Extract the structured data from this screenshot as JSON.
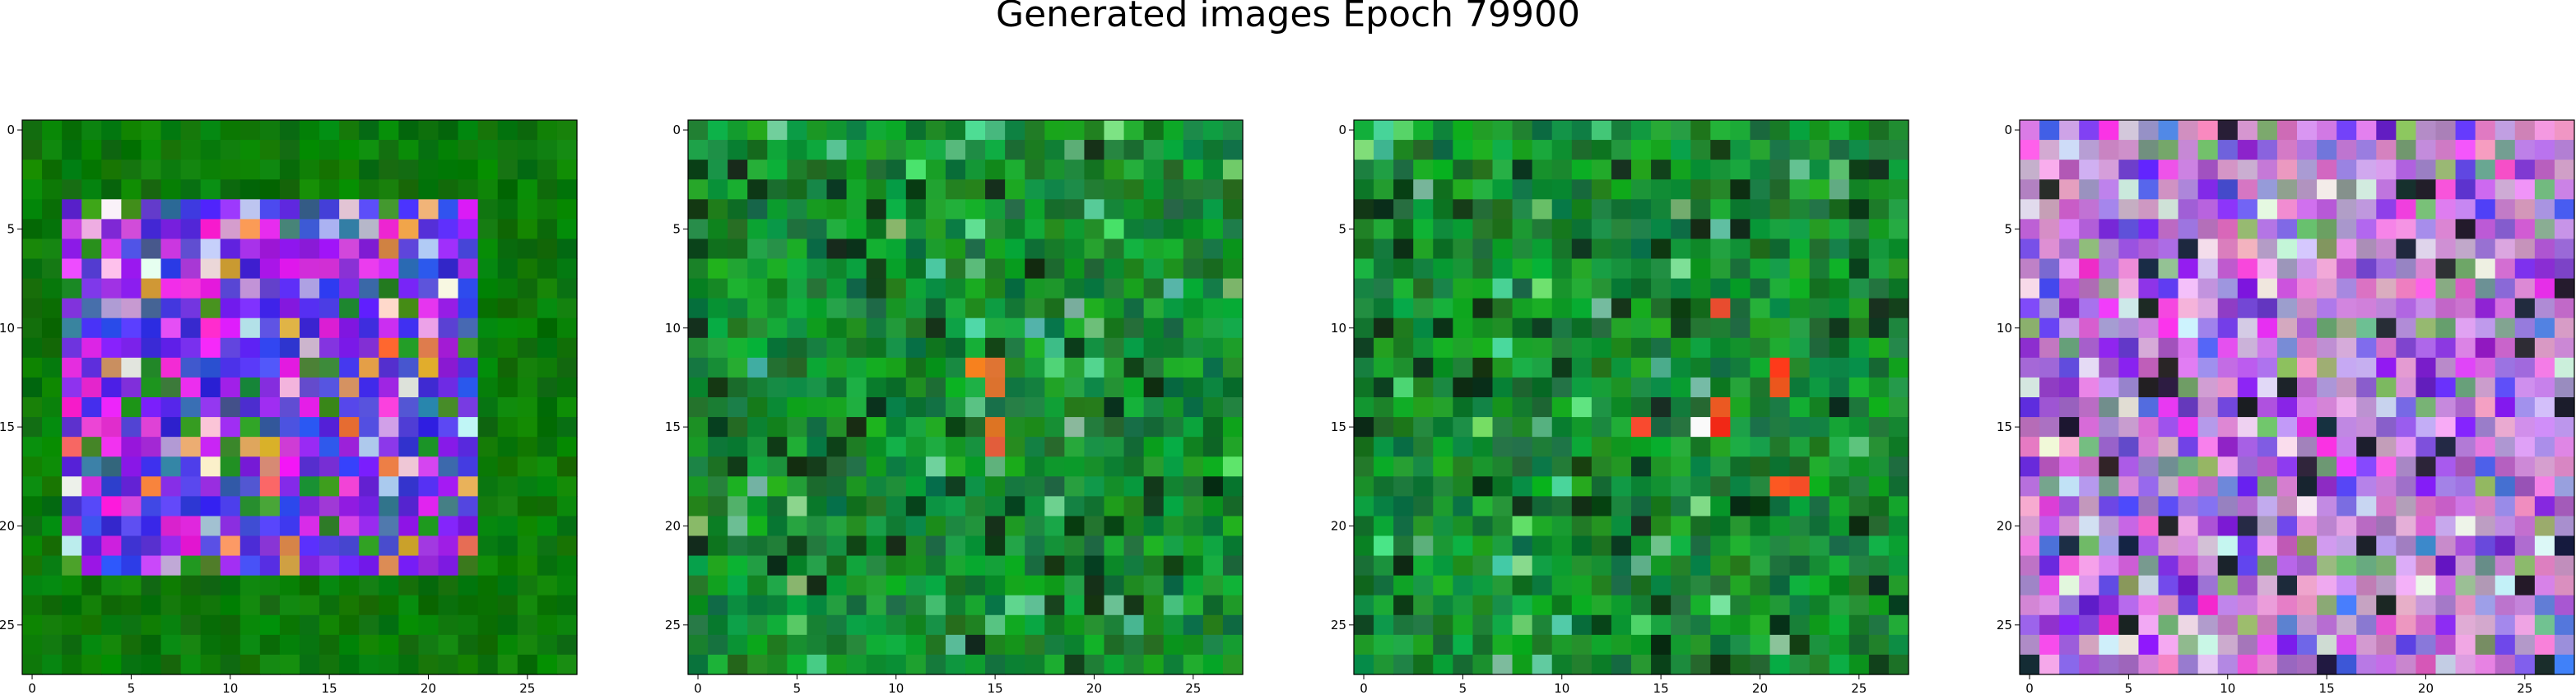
{
  "title": "Generated images Epoch 79900",
  "chart_data": {
    "type": "heatmap",
    "title": "Generated images Epoch 79900",
    "grid": false,
    "panels": [
      {
        "grid_size": 28,
        "x_ticks": [
          0,
          5,
          10,
          15,
          20,
          25
        ],
        "y_ticks": [
          0,
          5,
          10,
          15,
          20,
          25
        ],
        "xlim": [
          -0.5,
          27.5
        ],
        "ylim": [
          27.5,
          -0.5
        ],
        "dominant_colors": [
          "#0a7a0a",
          "#3a3ae6",
          "#8a2be2",
          "#e020e0",
          "#e05a10"
        ]
      },
      {
        "grid_size": 28,
        "x_ticks": [
          0,
          5,
          10,
          15,
          20,
          25
        ],
        "y_ticks": [
          0,
          5,
          10,
          15,
          20,
          25
        ],
        "xlim": [
          -0.5,
          27.5
        ],
        "ylim": [
          27.5,
          -0.5
        ],
        "dominant_colors": [
          "#0a7a2a",
          "#1aa040",
          "#063a12",
          "#f06020"
        ]
      },
      {
        "grid_size": 28,
        "x_ticks": [
          0,
          5,
          10,
          15,
          20,
          25
        ],
        "y_ticks": [
          0,
          5,
          10,
          15,
          20,
          25
        ],
        "xlim": [
          -0.5,
          27.5
        ],
        "ylim": [
          27.5,
          -0.5
        ],
        "dominant_colors": [
          "#0a7a2a",
          "#1aa040",
          "#063a12",
          "#f03020"
        ]
      },
      {
        "grid_size": 28,
        "x_ticks": [
          0,
          5,
          10,
          15,
          20,
          25
        ],
        "y_ticks": [
          0,
          5,
          10,
          15,
          20,
          25
        ],
        "xlim": [
          -0.5,
          27.5
        ],
        "ylim": [
          27.5,
          -0.5
        ],
        "dominant_colors": [
          "#c080d0",
          "#9040e0",
          "#d090c0",
          "#5030a0",
          "#80a060"
        ]
      }
    ]
  }
}
